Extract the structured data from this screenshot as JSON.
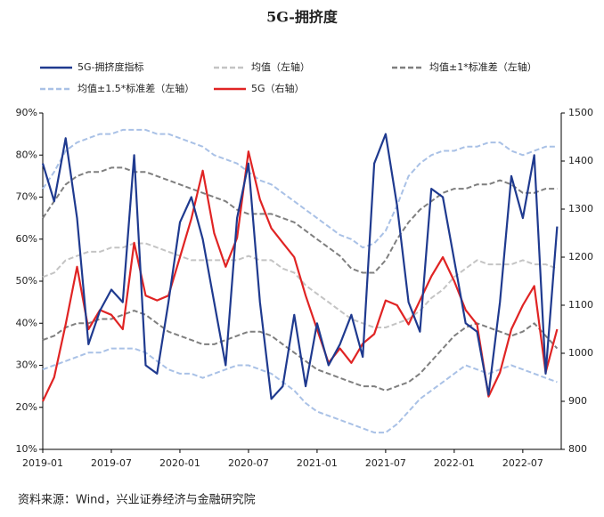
{
  "chart_data": {
    "type": "line",
    "title": "5G-拥挤度",
    "source": "资料来源：Wind，兴业证券经济与金融研究院",
    "categories": [
      "2019-01",
      null,
      null,
      null,
      null,
      null,
      "2019-07",
      null,
      null,
      null,
      null,
      null,
      "2020-01",
      null,
      null,
      null,
      null,
      null,
      "2020-07",
      null,
      null,
      null,
      null,
      null,
      "2021-01",
      null,
      null,
      null,
      null,
      null,
      "2021-07",
      null,
      null,
      null,
      null,
      null,
      "2022-01",
      null,
      null,
      null,
      null,
      null,
      "2022-07",
      null,
      null,
      null
    ],
    "ylim": [
      10,
      90
    ],
    "yticks": [
      {
        "value": 10,
        "label": "10%"
      },
      {
        "value": 20,
        "label": "20%"
      },
      {
        "value": 30,
        "label": "30%"
      },
      {
        "value": 40,
        "label": "40%"
      },
      {
        "value": 50,
        "label": "50%"
      },
      {
        "value": 60,
        "label": "60%"
      },
      {
        "value": 70,
        "label": "70%"
      },
      {
        "value": 80,
        "label": "80%"
      },
      {
        "value": 90,
        "label": "90%"
      }
    ],
    "y2lim": [
      800,
      1500
    ],
    "y2ticks": [
      800,
      900,
      1000,
      1100,
      1200,
      1300,
      1400,
      1500
    ],
    "series": [
      {
        "name": "5G-拥挤度指标",
        "color": "#1f3a8f",
        "dashed": false,
        "values": [
          78,
          69,
          84,
          65,
          35,
          43,
          48,
          45,
          80,
          30,
          28,
          45,
          64,
          70,
          60,
          45,
          30,
          65,
          78,
          45,
          22,
          25,
          42,
          25,
          40,
          30,
          35,
          42,
          32,
          78,
          85,
          68,
          45,
          38,
          72,
          70,
          55,
          40,
          38,
          23,
          45,
          75,
          65,
          80,
          28,
          63
        ]
      },
      {
        "name": "均值（左轴）",
        "color": "#c4c4c4",
        "dashed": true,
        "values": [
          51,
          52,
          55,
          56,
          57,
          57,
          58,
          58,
          59,
          59,
          58,
          57,
          56,
          55,
          55,
          55,
          55,
          55,
          56,
          55,
          55,
          53,
          52,
          49,
          47,
          45,
          43,
          41,
          40,
          39,
          39,
          40,
          41,
          43,
          46,
          48,
          51,
          53,
          55,
          54,
          54,
          54,
          55,
          54,
          54,
          53
        ]
      },
      {
        "name": "均值±1*标准差（左轴）",
        "color": "#7f7f7f",
        "dashed": true,
        "upper": [
          65,
          69,
          73,
          75,
          76,
          76,
          77,
          77,
          76,
          76,
          75,
          74,
          73,
          72,
          71,
          70,
          69,
          67,
          66,
          66,
          66,
          65,
          64,
          62,
          60,
          58,
          56,
          53,
          52,
          52,
          55,
          60,
          64,
          67,
          69,
          71,
          72,
          72,
          73,
          73,
          74,
          73,
          71,
          71,
          72,
          72
        ],
        "lower": [
          36,
          37,
          39,
          40,
          40,
          41,
          41,
          42,
          43,
          42,
          40,
          38,
          37,
          36,
          35,
          35,
          36,
          37,
          38,
          38,
          37,
          35,
          33,
          31,
          29,
          28,
          27,
          26,
          25,
          25,
          24,
          25,
          26,
          28,
          31,
          34,
          37,
          39,
          40,
          39,
          38,
          37,
          38,
          40,
          37,
          34
        ]
      },
      {
        "name": "均值±1.5*标准差（左轴）",
        "color": "#a9c1e6",
        "dashed": true,
        "upper": [
          72,
          76,
          81,
          83,
          84,
          85,
          85,
          86,
          86,
          86,
          85,
          85,
          84,
          83,
          82,
          80,
          79,
          78,
          76,
          74,
          73,
          71,
          69,
          67,
          65,
          63,
          61,
          60,
          58,
          59,
          62,
          68,
          75,
          78,
          80,
          81,
          81,
          82,
          82,
          83,
          83,
          81,
          80,
          81,
          82,
          82
        ],
        "lower": [
          29,
          30,
          31,
          32,
          33,
          33,
          34,
          34,
          34,
          33,
          31,
          29,
          28,
          28,
          27,
          28,
          29,
          30,
          30,
          29,
          28,
          26,
          24,
          21,
          19,
          18,
          17,
          16,
          15,
          14,
          14,
          16,
          19,
          22,
          24,
          26,
          28,
          30,
          29,
          28,
          29,
          30,
          29,
          28,
          27,
          26
        ]
      },
      {
        "name": "5G（右轴）",
        "color": "#e02424",
        "dashed": false,
        "axis": "y2",
        "values": [
          900,
          950,
          1060,
          1180,
          1050,
          1090,
          1080,
          1050,
          1230,
          1120,
          1110,
          1120,
          1200,
          1280,
          1380,
          1250,
          1180,
          1240,
          1420,
          1320,
          1260,
          1230,
          1200,
          1120,
          1050,
          980,
          1010,
          980,
          1020,
          1040,
          1110,
          1100,
          1060,
          1110,
          1160,
          1200,
          1150,
          1090,
          1060,
          910,
          960,
          1050,
          1100,
          1140,
          960,
          1050
        ]
      }
    ]
  }
}
